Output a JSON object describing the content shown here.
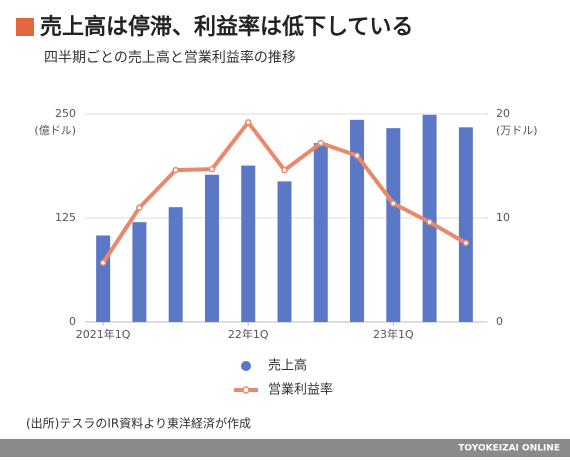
{
  "chart_data": {
    "type": "bar-line",
    "title": "売上高は停滞、利益率は低下している",
    "subtitle": "四半期ごとの売上高と営業利益率の推移",
    "y_label": "(億ドル)",
    "y2_label": "(万ドル)",
    "categories": [
      "2021年1Q",
      null,
      null,
      null,
      "22年1Q",
      null,
      null,
      null,
      "23年1Q",
      null,
      null
    ],
    "series": [
      {
        "name": "売上高",
        "type": "bar",
        "color": "#5b78c6",
        "values": [
          104,
          120,
          138,
          177,
          188,
          169,
          215,
          243,
          233,
          249,
          234
        ]
      },
      {
        "name": "営業利益率",
        "type": "line",
        "axis": "y2",
        "color": "#e9896b",
        "values": [
          5.7,
          11.0,
          14.6,
          14.7,
          19.2,
          14.6,
          17.2,
          16.0,
          11.4,
          9.6,
          7.6
        ]
      }
    ],
    "ylim": [
      0,
      250
    ],
    "yticks": [
      0,
      125,
      250
    ],
    "y2lim": [
      0,
      20
    ],
    "y2ticks": [
      0,
      10,
      20
    ],
    "grid": true,
    "source": "(出所)テスラのIR資料より東洋経済が作成",
    "footer": "TOYOKEIZAI ONLINE"
  }
}
